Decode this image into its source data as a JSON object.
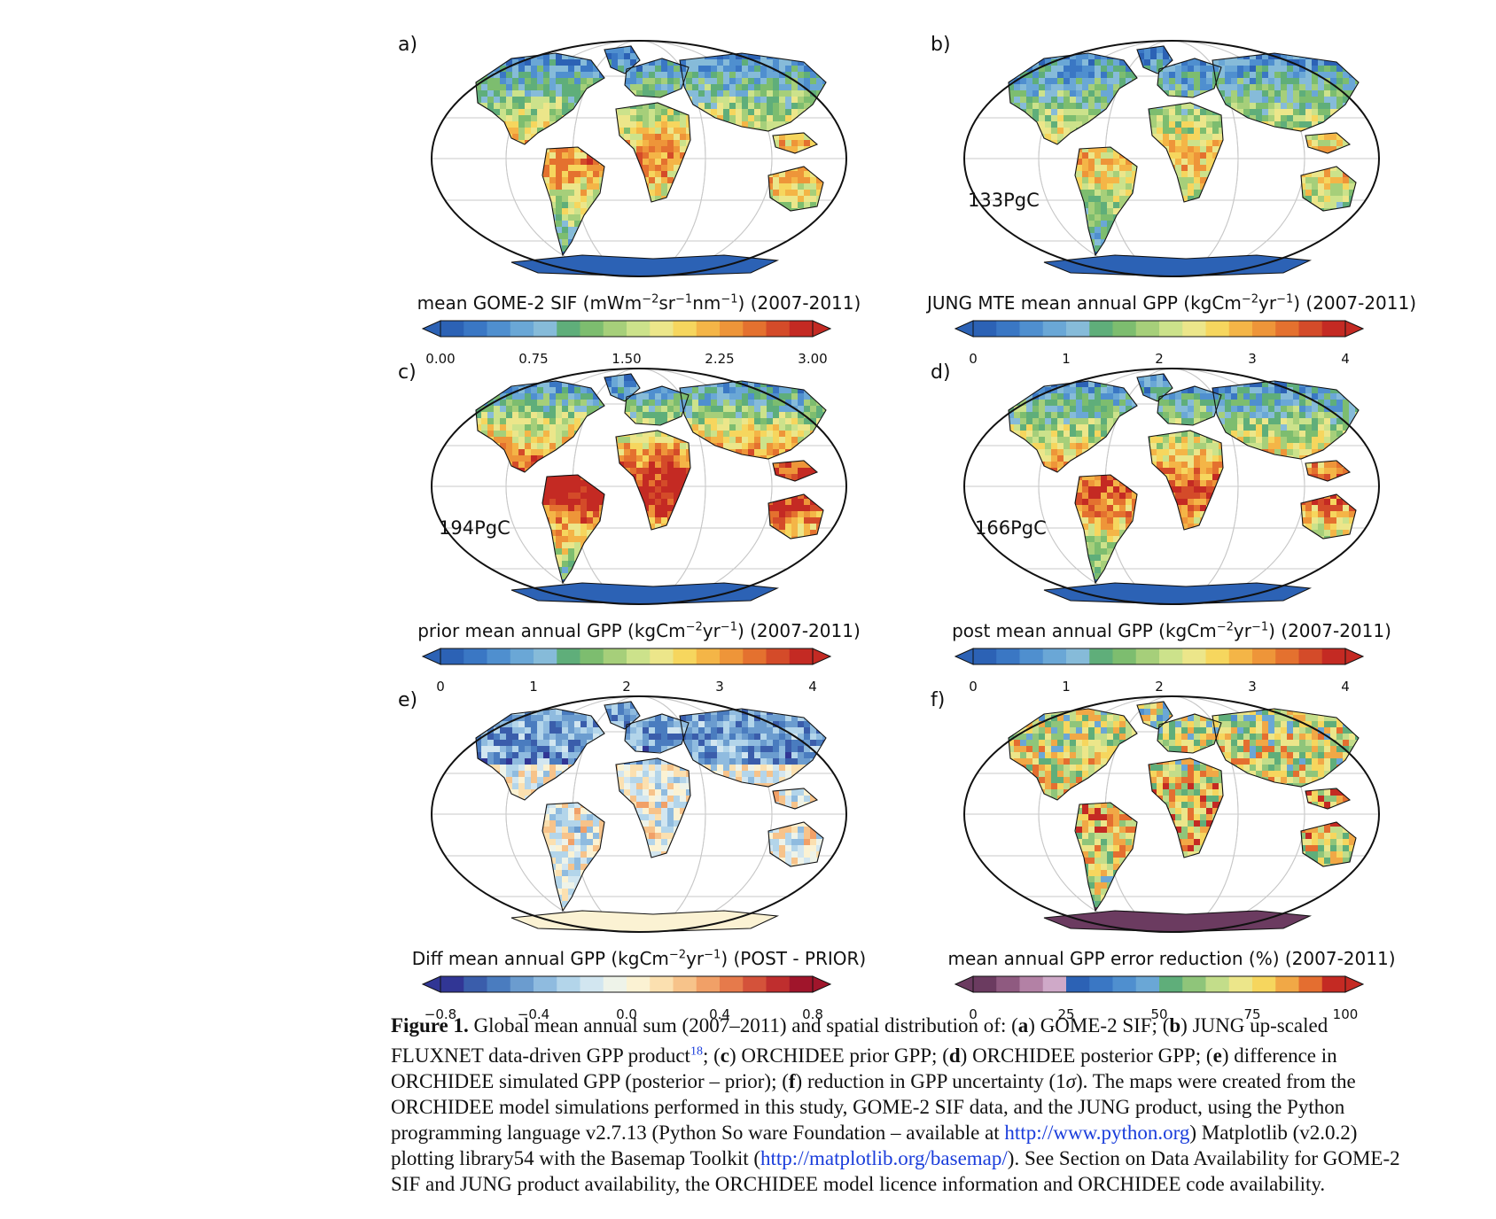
{
  "panels": [
    {
      "id": "a",
      "letter": "a)",
      "total": "",
      "cbar_title_html": "mean GOME-2 SIF (mWm<sup>−2</sup>sr<sup>−1</sup>nm<sup>−1</sup>) (2007-2011)",
      "ticks": [
        "0.00",
        "0.75",
        "1.50",
        "2.25",
        "3.00"
      ],
      "palette": "spectral",
      "intensity": 0.45
    },
    {
      "id": "b",
      "letter": "b)",
      "total": "133PgC",
      "cbar_title_html": "JUNG MTE mean annual GPP (kgCm<sup>−2</sup>yr<sup>−1</sup>) (2007-2011)",
      "ticks": [
        "0",
        "1",
        "2",
        "3",
        "4"
      ],
      "palette": "spectral",
      "intensity": 0.4
    },
    {
      "id": "c",
      "letter": "c)",
      "total": "194PgC",
      "cbar_title_html": "prior mean annual GPP (kgCm<sup>−2</sup>yr<sup>−1</sup>) (2007-2011)",
      "ticks": [
        "0",
        "1",
        "2",
        "3",
        "4"
      ],
      "palette": "spectral",
      "intensity": 0.62
    },
    {
      "id": "d",
      "letter": "d)",
      "total": "166PgC",
      "cbar_title_html": "post mean annual GPP (kgCm<sup>−2</sup>yr<sup>−1</sup>) (2007-2011)",
      "ticks": [
        "0",
        "1",
        "2",
        "3",
        "4"
      ],
      "palette": "spectral",
      "intensity": 0.52
    },
    {
      "id": "e",
      "letter": "e)",
      "total": "",
      "cbar_title_html": "Diff mean annual GPP (kgCm<sup>−2</sup>yr<sup>−1</sup>) (POST - PRIOR)",
      "ticks": [
        "−0.8",
        "−0.4",
        "0.0",
        "0.4",
        "0.8"
      ],
      "palette": "diverging",
      "intensity": 0.35
    },
    {
      "id": "f",
      "letter": "f)",
      "total": "",
      "cbar_title_html": "mean annual GPP error reduction (%) (2007-2011)",
      "ticks": [
        "0",
        "25",
        "50",
        "75",
        "100"
      ],
      "palette": "error",
      "intensity": 0.75
    }
  ],
  "palettes": {
    "spectral": [
      "#2c62b5",
      "#3a77c4",
      "#4f8fcf",
      "#6aa7d6",
      "#86bbd9",
      "#5fae7a",
      "#7dbd6f",
      "#a6cf7a",
      "#cce28b",
      "#ece68a",
      "#f6d65e",
      "#f4b547",
      "#ee9539",
      "#e4712f",
      "#d44b29",
      "#c42a23"
    ],
    "diverging": [
      "#313695",
      "#3a5dab",
      "#4a7cbf",
      "#6b9ccf",
      "#8fbbdf",
      "#b3d5ea",
      "#d2e6f0",
      "#eef3e9",
      "#fbf2d3",
      "#fbe0b0",
      "#f7c38a",
      "#f1a067",
      "#e67a4b",
      "#d4523a",
      "#bf2e2e",
      "#a0152b"
    ],
    "error": [
      "#6b3b60",
      "#8f5a80",
      "#b381a5",
      "#cfa9c8",
      "#2c62b5",
      "#3a77c4",
      "#4f8fcf",
      "#6aa7d6",
      "#5fae7a",
      "#8fc57a",
      "#c3dd8a",
      "#ece68a",
      "#f6d65e",
      "#f1a846",
      "#e46e30",
      "#c42a23"
    ]
  },
  "caption": {
    "label": "Figure 1.",
    "html": "Global mean annual sum (2007–2011) and spatial distribution of: (<b>a</b>) GOME-2 SIF; (<b>b</b>) JUNG up-scaled FLUXNET data-driven GPP product<sup>18</sup>; (<b>c</b>) ORCHIDEE prior GPP; (<b>d</b>) ORCHIDEE posterior GPP; (<b>e</b>) difference in ORCHIDEE simulated GPP (posterior – prior); (<b>f</b>) reduction in GPP uncertainty (1<i>σ</i>). The maps were created from the ORCHIDEE model simulations performed in this study, GOME-2 SIF data, and the JUNG product, using the Python programming language v2.7.13 (Python So ware Foundation – available at <a>http://www.python.org</a>) Matplotlib (v2.0.2) plotting library54 with the Basemap Toolkit (<a>http://matplotlib.org/basemap/</a>). See Section on Data Availability for GOME-2 SIF and JUNG product availability, the ORCHIDEE model licence information and ORCHIDEE code availability."
  }
}
